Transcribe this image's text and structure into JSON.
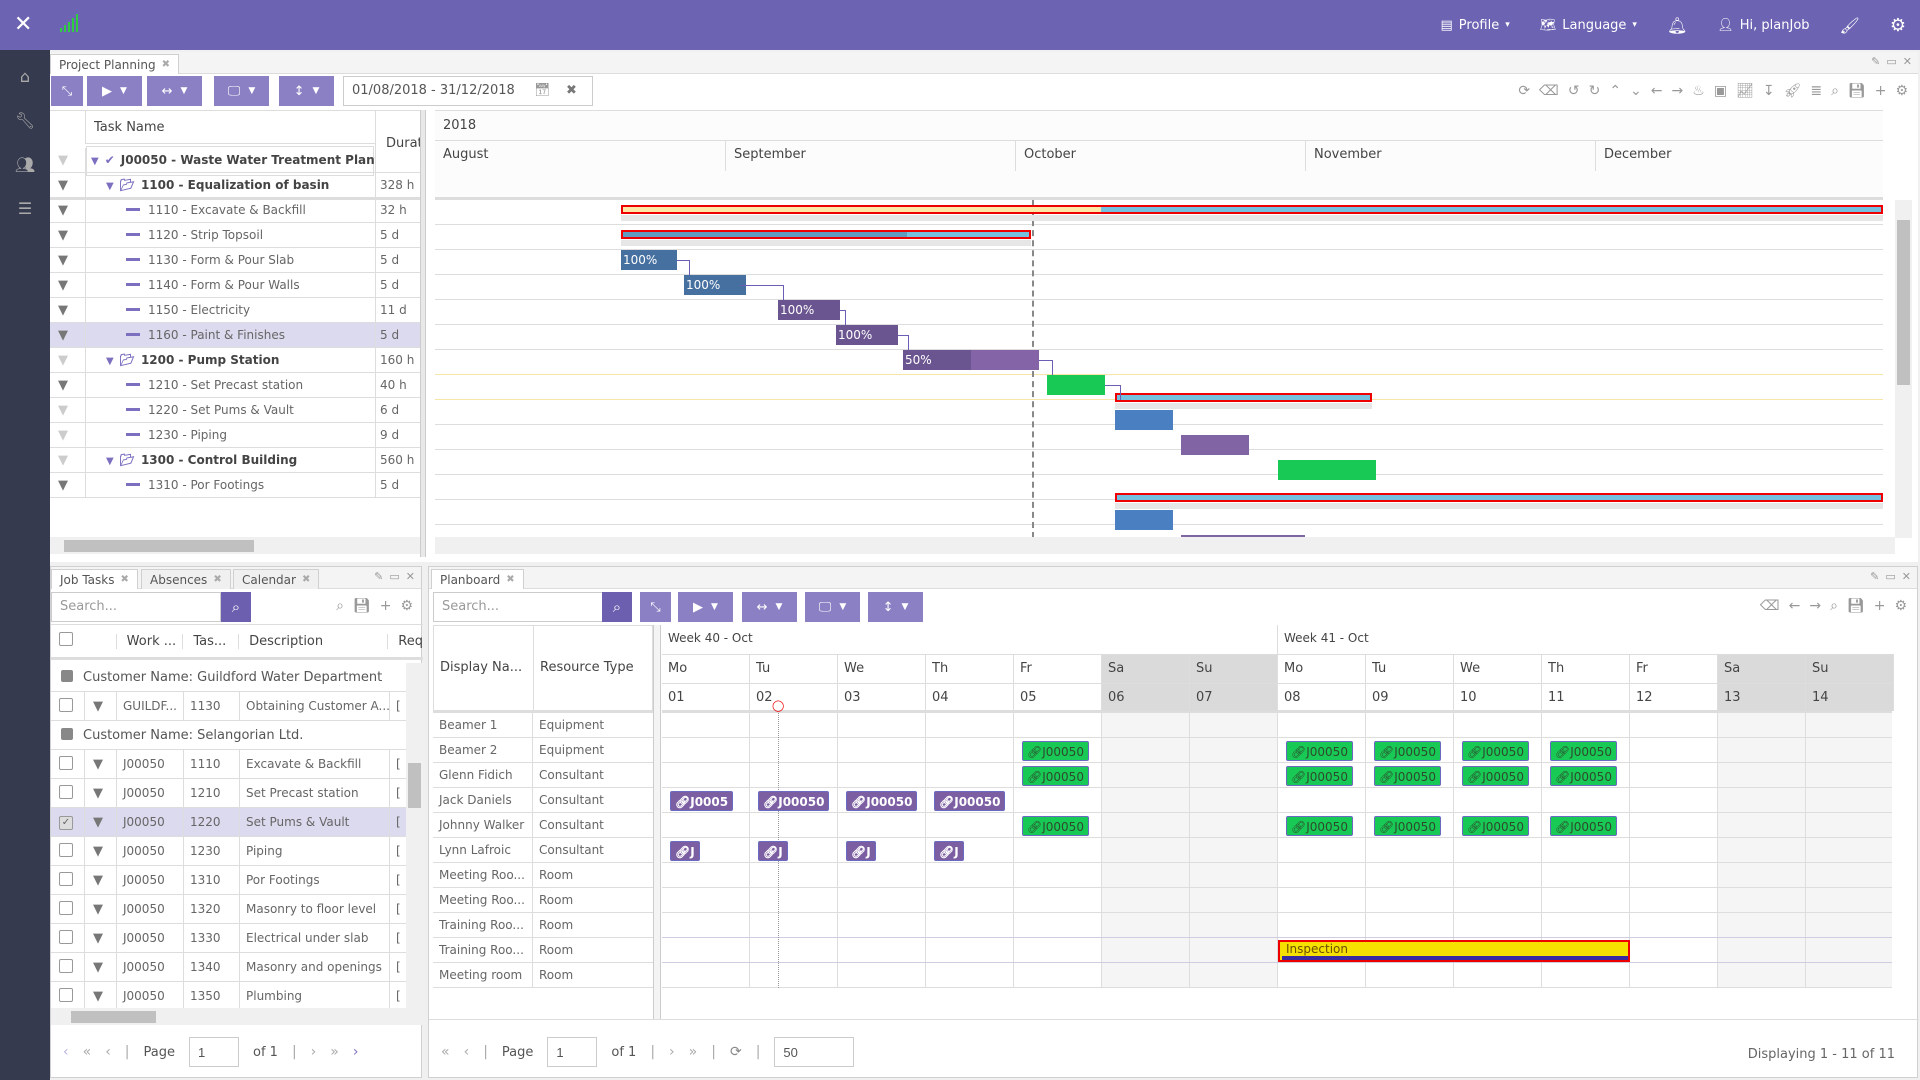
{
  "header": {
    "profile": "Profile",
    "language": "Language",
    "greeting": "Hi, planJob"
  },
  "sidebar": {
    "items": [
      "home-icon",
      "wrench-icon",
      "users-icon",
      "sliders-icon"
    ]
  },
  "project_planning": {
    "tab": "Project Planning",
    "date_range": "01/08/2018 - 31/12/2018",
    "col_task_name": "Task Name",
    "col_duration": "Durat",
    "year": "2018",
    "months": [
      "August",
      "September",
      "October",
      "November",
      "December"
    ],
    "tasks": [
      {
        "name": "J00050 - Waste Water Treatment Plant",
        "duration": "",
        "level": 0,
        "bold": true
      },
      {
        "name": "1100 - Equalization of basin",
        "duration": "328 h",
        "level": 1,
        "bold": true
      },
      {
        "name": "1110 - Excavate & Backfill",
        "duration": "32 h",
        "level": 2
      },
      {
        "name": "1120 - Strip Topsoil",
        "duration": "5 d",
        "level": 2
      },
      {
        "name": "1130 - Form & Pour Slab",
        "duration": "5 d",
        "level": 2
      },
      {
        "name": "1140 - Form & Pour Walls",
        "duration": "5 d",
        "level": 2
      },
      {
        "name": "1150 - Electricity",
        "duration": "11 d",
        "level": 2
      },
      {
        "name": "1160 - Paint & Finishes",
        "duration": "5 d",
        "level": 2,
        "selected": true
      },
      {
        "name": "1200 - Pump Station",
        "duration": "160 h",
        "level": 1,
        "bold": true
      },
      {
        "name": "1210 - Set Precast station",
        "duration": "40 h",
        "level": 2
      },
      {
        "name": "1220 - Set Pums & Vault",
        "duration": "6 d",
        "level": 2
      },
      {
        "name": "1230 - Piping",
        "duration": "9 d",
        "level": 2
      },
      {
        "name": "1300 - Control Building",
        "duration": "560 h",
        "level": 1,
        "bold": true
      },
      {
        "name": "1310 - Por Footings",
        "duration": "5 d",
        "level": 2
      }
    ],
    "bar_labels": [
      "100%",
      "100%",
      "100%",
      "100%",
      "50%"
    ]
  },
  "job_tasks": {
    "tabs": [
      "Job Tasks",
      "Absences",
      "Calendar"
    ],
    "search_placeholder": "Search...",
    "columns": [
      "Work ...",
      "Tas...",
      "Description",
      "Req"
    ],
    "groups": [
      {
        "label": "Customer Name: Guildford Water Department",
        "rows": [
          {
            "work": "GUILDF...",
            "task": "1130",
            "desc": "Obtaining Customer A..."
          }
        ]
      },
      {
        "label": "Customer Name: Selangorian Ltd.",
        "rows": [
          {
            "work": "J00050",
            "task": "1110",
            "desc": "Excavate & Backfill"
          },
          {
            "work": "J00050",
            "task": "1210",
            "desc": "Set Precast station"
          },
          {
            "work": "J00050",
            "task": "1220",
            "desc": "Set Pums & Vault",
            "checked": true
          },
          {
            "work": "J00050",
            "task": "1230",
            "desc": "Piping"
          },
          {
            "work": "J00050",
            "task": "1310",
            "desc": "Por Footings"
          },
          {
            "work": "J00050",
            "task": "1320",
            "desc": "Masonry to floor level"
          },
          {
            "work": "J00050",
            "task": "1330",
            "desc": "Electrical under slab"
          },
          {
            "work": "J00050",
            "task": "1340",
            "desc": "Masonry and openings"
          },
          {
            "work": "J00050",
            "task": "1350",
            "desc": "Plumbing"
          }
        ]
      }
    ],
    "pager": {
      "page_label": "Page",
      "page": "1",
      "of": "of 1"
    }
  },
  "planboard": {
    "tab": "Planboard",
    "search_placeholder": "Search...",
    "col_display_name": "Display Na...",
    "col_resource_type": "Resource Type",
    "weeks": [
      "Week 40 - Oct",
      "Week 41 - Oct"
    ],
    "days": [
      "Mo",
      "Tu",
      "We",
      "Th",
      "Fr",
      "Sa",
      "Su",
      "Mo",
      "Tu",
      "We",
      "Th",
      "Fr",
      "Sa",
      "Su"
    ],
    "dates": [
      "01",
      "02",
      "03",
      "04",
      "05",
      "06",
      "07",
      "08",
      "09",
      "10",
      "11",
      "12",
      "13",
      "14"
    ],
    "resources": [
      {
        "name": "Beamer 1",
        "type": "Equipment"
      },
      {
        "name": "Beamer 2",
        "type": "Equipment"
      },
      {
        "name": "Glenn Fidich",
        "type": "Consultant"
      },
      {
        "name": "Jack Daniels",
        "type": "Consultant"
      },
      {
        "name": "Johnny Walker",
        "type": "Consultant"
      },
      {
        "name": "Lynn Lafroic",
        "type": "Consultant"
      },
      {
        "name": "Meeting Roo...",
        "type": "Room"
      },
      {
        "name": "Meeting Roo...",
        "type": "Room"
      },
      {
        "name": "Training Roo...",
        "type": "Room"
      },
      {
        "name": "Training Roo...",
        "type": "Room"
      },
      {
        "name": "Meeting room",
        "type": "Room"
      }
    ],
    "chip_labels": {
      "full": "J00050",
      "short5": "J0005",
      "short": "J"
    },
    "event": "Inspection",
    "pager": {
      "page_label": "Page",
      "page": "1",
      "of": "of 1",
      "page_size": "50",
      "displaying": "Displaying 1 - 11 of 11"
    }
  },
  "colors": {
    "brand": "#6c63b2",
    "sidebar": "#353a4e",
    "bar_blue": "#4670a0",
    "bar_purple": "#6b5590",
    "bar_green": "#19c955",
    "summary": "#74c0de",
    "event_yellow": "#f5e000"
  }
}
